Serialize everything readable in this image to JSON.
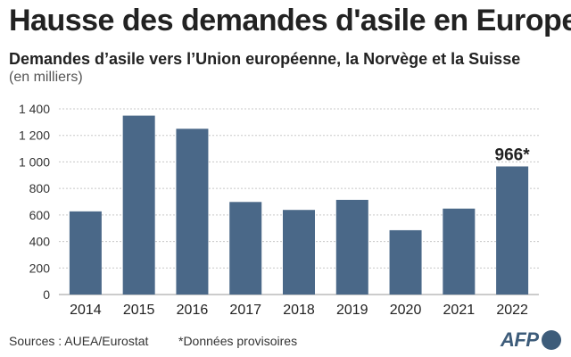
{
  "header": {
    "title": "Hausse des demandes d'asile en Europe",
    "subtitle": "Demandes d’asile vers l’Union européenne, la Norvège et la Suisse",
    "unit": "(en milliers)"
  },
  "chart_data": {
    "type": "bar",
    "categories": [
      "2014",
      "2015",
      "2016",
      "2017",
      "2018",
      "2019",
      "2020",
      "2021",
      "2022"
    ],
    "values": [
      627,
      1349,
      1250,
      698,
      638,
      714,
      485,
      648,
      966
    ],
    "ylim": [
      0,
      1400
    ],
    "yticks": [
      0,
      200,
      400,
      600,
      800,
      1000,
      1200,
      1400
    ],
    "ytick_labels": [
      "0",
      "200",
      "400",
      "600",
      "800",
      "1 000",
      "1 200",
      "1 400"
    ],
    "annotation": {
      "category": "2022",
      "text": "966*"
    },
    "bar_color": "#4a6888",
    "grid": true
  },
  "footer": {
    "source": "Sources : AUEA/Eurostat",
    "note": "*Données provisoires",
    "logo_text": "AFP"
  },
  "colors": {
    "logo": "#3d5c7a"
  }
}
